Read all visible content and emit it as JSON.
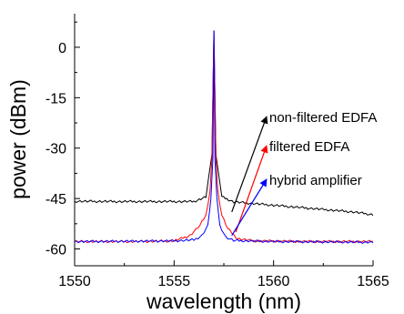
{
  "chart_data": {
    "type": "line",
    "title": "",
    "xlabel": "wavelength (nm)",
    "ylabel": "power (dBm)",
    "xlim": [
      1550,
      1565
    ],
    "ylim": [
      -65,
      10
    ],
    "xticks": [
      1550,
      1555,
      1560,
      1565
    ],
    "yticks": [
      0,
      -15,
      -30,
      -45,
      -60
    ],
    "grid": false,
    "series": [
      {
        "name": "non-filtered EDFA",
        "color": "#000000",
        "x": [
          1550,
          1552,
          1554,
          1556,
          1556.6,
          1556.8,
          1556.9,
          1557.0,
          1557.1,
          1557.2,
          1557.4,
          1558,
          1560,
          1562,
          1564,
          1565
        ],
        "y": [
          -45.8,
          -45.9,
          -45.9,
          -45.9,
          -44.5,
          -36,
          -32,
          5,
          -32,
          -36,
          -44.5,
          -46,
          -47,
          -48,
          -49,
          -49.8
        ]
      },
      {
        "name": "filtered EDFA",
        "color": "#ff0000",
        "x": [
          1550,
          1553,
          1555,
          1555.8,
          1556.3,
          1556.6,
          1556.8,
          1556.9,
          1557.0,
          1557.1,
          1557.2,
          1557.4,
          1557.7,
          1558.2,
          1559,
          1562,
          1565
        ],
        "y": [
          -57.8,
          -57.8,
          -57.6,
          -56,
          -53,
          -50,
          -43,
          -33,
          5,
          -33,
          -43,
          -50,
          -54,
          -57,
          -57.6,
          -57.8,
          -57.8
        ]
      },
      {
        "name": "hybrid amplifier",
        "color": "#0000ff",
        "x": [
          1550,
          1553,
          1555,
          1556,
          1556.4,
          1556.7,
          1556.85,
          1556.95,
          1557.0,
          1557.05,
          1557.15,
          1557.3,
          1557.6,
          1558,
          1560,
          1565
        ],
        "y": [
          -57.8,
          -57.7,
          -57.6,
          -57.3,
          -56,
          -53,
          -45,
          -33,
          5,
          -33,
          -45,
          -53,
          -56.5,
          -57.5,
          -57.8,
          -58
        ]
      }
    ],
    "annotations": [
      {
        "text": "non-filtered EDFA",
        "series": 0,
        "point": [
          1557.9,
          -49
        ],
        "color": "#000000"
      },
      {
        "text": "filtered EDFA",
        "series": 1,
        "point": [
          1558.1,
          -55
        ],
        "color": "#ff0000"
      },
      {
        "text": "hybrid amplifier",
        "series": 2,
        "point": [
          1557.9,
          -56
        ],
        "color": "#0000ff"
      }
    ]
  }
}
